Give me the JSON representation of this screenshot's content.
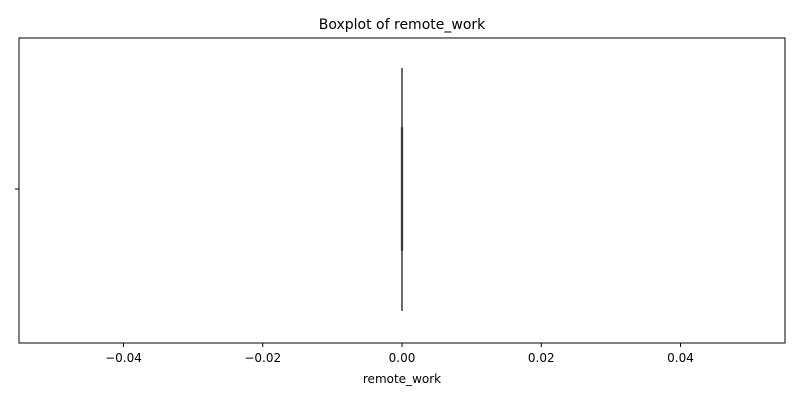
{
  "chart_data": {
    "type": "boxplot",
    "title": "Boxplot of remote_work",
    "xlabel": "remote_work",
    "ylabel": "",
    "orientation": "horizontal",
    "xlim": [
      -0.055,
      0.055
    ],
    "xticks": [
      -0.04,
      -0.02,
      0.0,
      0.02,
      0.04
    ],
    "xtick_labels": [
      "−0.04",
      "−0.02",
      "0.00",
      "0.02",
      "0.04"
    ],
    "grid": false,
    "legend": "none",
    "series": [
      {
        "min": 0.0,
        "q1": 0.0,
        "median": 0.0,
        "q3": 0.0,
        "max": 0.0,
        "color": "#3a3a3a"
      }
    ]
  }
}
